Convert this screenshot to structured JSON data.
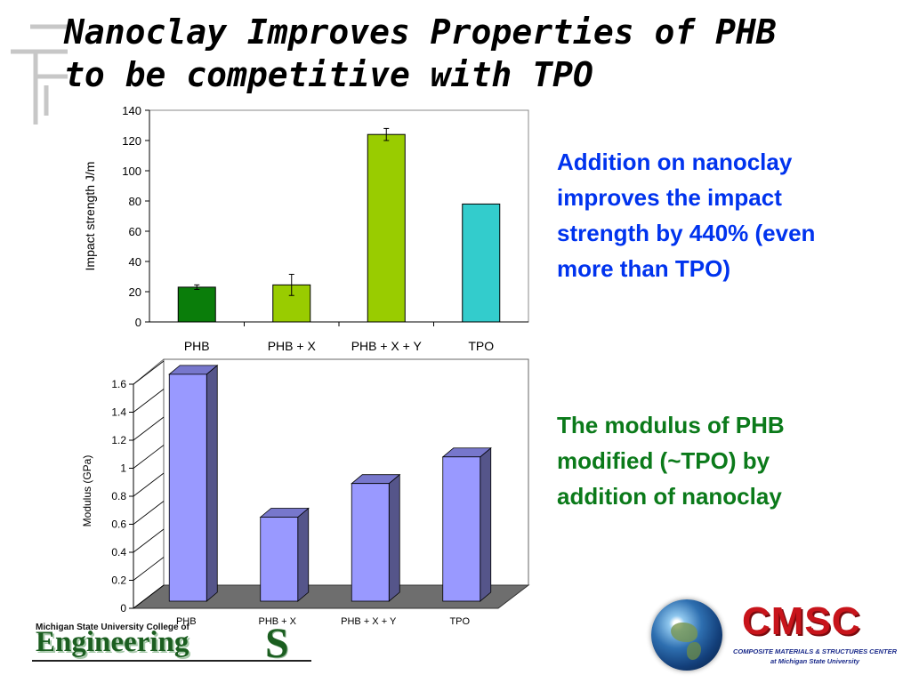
{
  "slide": {
    "title_line1": "Nanoclay Improves Properties of PHB",
    "title_line2": "to be competitive with TPO",
    "text_impact": "Addition on nanoclay improves the impact strength by 440% (even more than TPO)",
    "text_modulus": "The modulus of PHB modified (~TPO) by addition of nanoclay"
  },
  "footer": {
    "msu_line": "Michigan State University College of",
    "engineering": "Engineering",
    "msu_logo_letter": "S",
    "cmsc": "CMSC",
    "cmsc_subtitle1": "COMPOSITE MATERIALS & STRUCTURES CENTER",
    "cmsc_subtitle2": "at Michigan State University"
  },
  "chart_data": [
    {
      "type": "bar",
      "categories": [
        "PHB",
        "PHB + X",
        "PHB + X + Y",
        "TPO"
      ],
      "values": [
        23,
        24.5,
        124,
        78
      ],
      "error": [
        1.5,
        7,
        4,
        0
      ],
      "title": "",
      "xlabel": "",
      "ylabel": "Impact strength J/m",
      "ylim": [
        0,
        140
      ],
      "yticks": [
        0,
        20,
        40,
        60,
        80,
        100,
        120,
        140
      ],
      "grid": false,
      "colors": [
        "#0a7d0a",
        "#99cc00",
        "#99cc00",
        "#33cccc"
      ]
    },
    {
      "type": "bar",
      "style": "3d",
      "categories": [
        "PHB",
        "PHB + X",
        "PHB + X + Y",
        "TPO"
      ],
      "values": [
        1.62,
        0.6,
        0.84,
        1.03
      ],
      "title": "",
      "xlabel": "",
      "ylabel": "Modulus (GPa)",
      "ylim": [
        0,
        1.6
      ],
      "yticks": [
        "0",
        "0.2",
        "0.4",
        "0.6",
        "0.8",
        "1",
        "1.2",
        "1.4",
        "1.6"
      ],
      "grid": false,
      "colors": [
        "#9999ff"
      ]
    }
  ]
}
